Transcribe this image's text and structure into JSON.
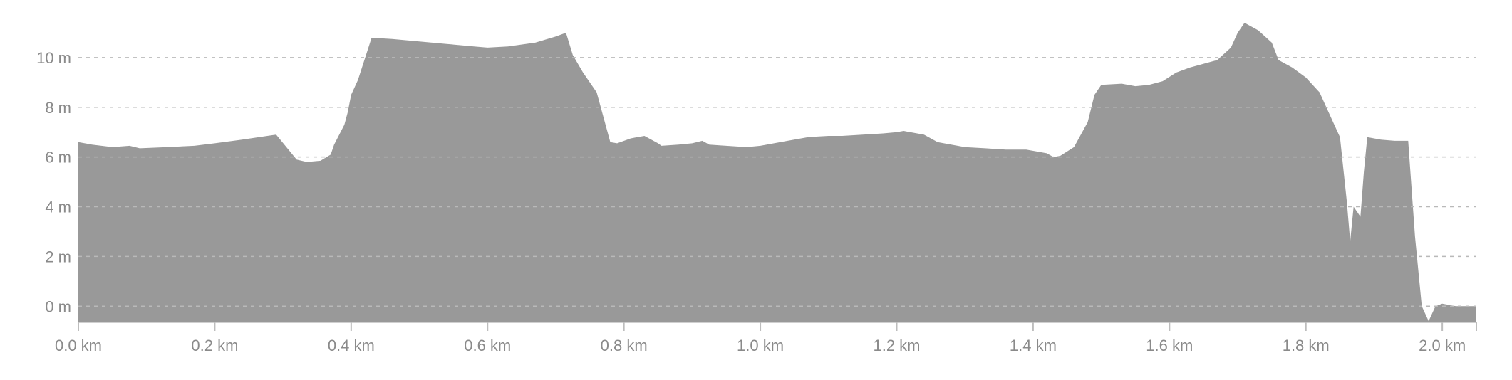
{
  "chart_data": {
    "type": "area",
    "x_unit": "km",
    "y_unit": "m",
    "xlim": [
      0,
      2.05
    ],
    "ylim": [
      -0.65,
      11.6
    ],
    "x_ticks": [
      0.0,
      0.2,
      0.4,
      0.6,
      0.8,
      1.0,
      1.2,
      1.4,
      1.6,
      1.8,
      2.0
    ],
    "x_tick_labels": [
      "0.0 km",
      "0.2 km",
      "0.4 km",
      "0.6 km",
      "0.8 km",
      "1.0 km",
      "1.2 km",
      "1.4 km",
      "1.6 km",
      "1.8 km",
      "2.0 km"
    ],
    "y_ticks": [
      0,
      2,
      4,
      6,
      8,
      10
    ],
    "y_tick_labels": [
      "0 m",
      "2 m",
      "4 m",
      "6 m",
      "8 m",
      "10 m"
    ],
    "grid": true,
    "fill_color": "#999999",
    "series": [
      {
        "x": [
          0.0,
          0.02,
          0.05,
          0.075,
          0.09,
          0.13,
          0.17,
          0.2,
          0.24,
          0.29,
          0.32,
          0.335,
          0.355,
          0.37,
          0.375,
          0.39,
          0.395,
          0.4,
          0.41,
          0.43,
          0.46,
          0.5,
          0.54,
          0.58,
          0.6,
          0.63,
          0.67,
          0.7,
          0.715,
          0.725,
          0.74,
          0.76,
          0.78,
          0.79,
          0.81,
          0.83,
          0.85,
          0.855,
          0.88,
          0.9,
          0.915,
          0.925,
          0.95,
          0.98,
          1.0,
          1.04,
          1.07,
          1.1,
          1.12,
          1.15,
          1.18,
          1.2,
          1.21,
          1.24,
          1.26,
          1.3,
          1.33,
          1.36,
          1.39,
          1.42,
          1.43,
          1.44,
          1.46,
          1.48,
          1.49,
          1.5,
          1.53,
          1.55,
          1.57,
          1.59,
          1.61,
          1.63,
          1.65,
          1.67,
          1.69,
          1.7,
          1.71,
          1.73,
          1.75,
          1.76,
          1.78,
          1.8,
          1.82,
          1.84,
          1.85,
          1.86,
          1.865,
          1.87,
          1.875,
          1.88,
          1.885,
          1.89,
          1.91,
          1.93,
          1.95,
          1.96,
          1.97,
          1.98,
          1.99,
          2.0,
          2.02,
          2.05
        ],
        "y": [
          6.6,
          6.5,
          6.4,
          6.45,
          6.35,
          6.4,
          6.45,
          6.55,
          6.7,
          6.9,
          5.9,
          5.8,
          5.85,
          6.1,
          6.5,
          7.3,
          7.8,
          8.5,
          9.1,
          10.8,
          10.75,
          10.65,
          10.55,
          10.45,
          10.4,
          10.45,
          10.6,
          10.85,
          11.0,
          10.1,
          9.4,
          8.6,
          6.6,
          6.55,
          6.75,
          6.85,
          6.55,
          6.45,
          6.5,
          6.55,
          6.65,
          6.5,
          6.45,
          6.4,
          6.45,
          6.65,
          6.8,
          6.85,
          6.85,
          6.9,
          6.95,
          7.0,
          7.05,
          6.9,
          6.6,
          6.4,
          6.35,
          6.3,
          6.3,
          6.15,
          6.0,
          6.05,
          6.4,
          7.4,
          8.5,
          8.9,
          8.95,
          8.85,
          8.9,
          9.05,
          9.4,
          9.6,
          9.75,
          9.9,
          10.4,
          11.0,
          11.4,
          11.1,
          10.6,
          9.9,
          9.6,
          9.2,
          8.6,
          7.4,
          6.8,
          4.2,
          2.6,
          4.0,
          3.8,
          3.6,
          5.4,
          6.8,
          6.7,
          6.65,
          6.65,
          2.8,
          0.0,
          -0.6,
          0.0,
          0.1,
          0.0,
          0.0
        ]
      }
    ]
  }
}
